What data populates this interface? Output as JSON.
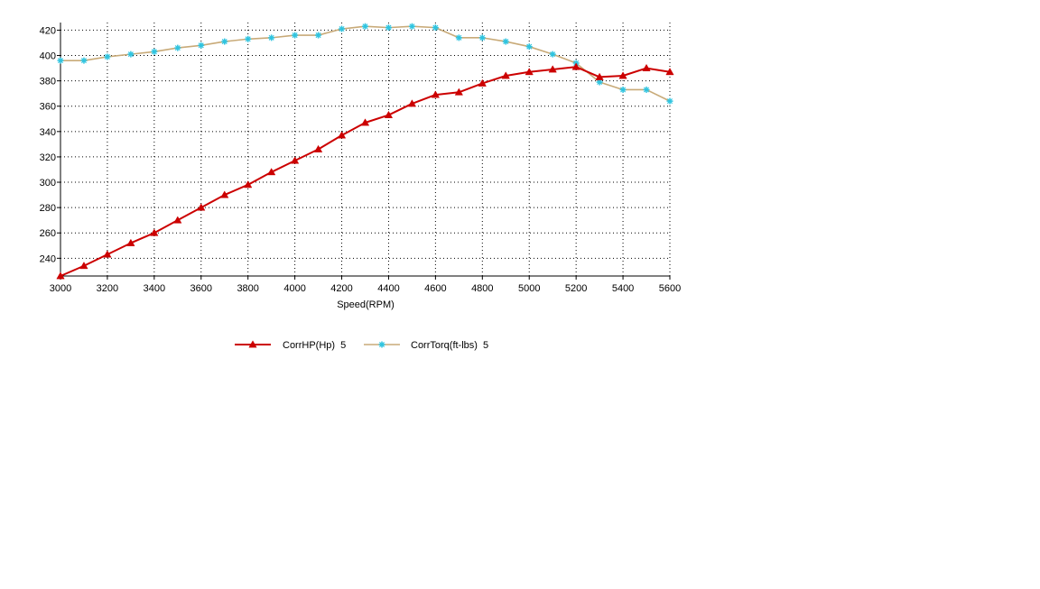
{
  "chart_data": {
    "type": "line",
    "title": "",
    "xlabel": "Speed(RPM)",
    "ylabel": "",
    "xlim": [
      3000,
      5600
    ],
    "ylim": [
      226,
      426
    ],
    "x_ticks": [
      3000,
      3200,
      3400,
      3600,
      3800,
      4000,
      4200,
      4400,
      4600,
      4800,
      5000,
      5200,
      5400,
      5600
    ],
    "y_ticks": [
      240,
      260,
      280,
      300,
      320,
      340,
      360,
      380,
      400,
      420
    ],
    "grid": true,
    "legend_position": "bottom",
    "x": [
      3000,
      3100,
      3200,
      3300,
      3400,
      3500,
      3600,
      3700,
      3800,
      3900,
      4000,
      4100,
      4200,
      4300,
      4400,
      4500,
      4600,
      4700,
      4800,
      4900,
      5000,
      5100,
      5200,
      5300,
      5400,
      5500,
      5600
    ],
    "series": [
      {
        "name": "CorrHP(Hp)  5",
        "color": "#cc0000",
        "marker": "triangle",
        "values": [
          226,
          234,
          243,
          252,
          260,
          270,
          280,
          290,
          298,
          308,
          317,
          326,
          337,
          347,
          353,
          362,
          369,
          371,
          378,
          384,
          387,
          389,
          391,
          383,
          384,
          390,
          387
        ]
      },
      {
        "name": "CorrTorq(ft-lbs)  5",
        "color": "#c8aa78",
        "marker_color": "#2ec4e0",
        "marker": "star",
        "values": [
          396,
          396,
          399,
          401,
          403,
          406,
          408,
          411,
          413,
          414,
          416,
          416,
          421,
          423,
          422,
          423,
          422,
          414,
          414,
          411,
          407,
          401,
          394,
          379,
          373,
          373,
          364
        ]
      }
    ]
  }
}
